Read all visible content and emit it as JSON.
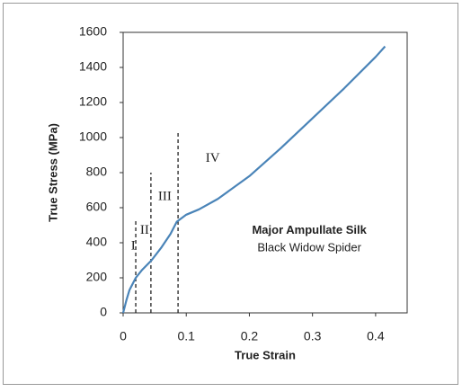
{
  "chart_data": {
    "type": "line",
    "xlabel": "True Strain",
    "ylabel": "True Stress (MPa)",
    "x": [
      0,
      0.005,
      0.01,
      0.02,
      0.03,
      0.045,
      0.06,
      0.075,
      0.085,
      0.1,
      0.12,
      0.15,
      0.2,
      0.25,
      0.3,
      0.35,
      0.4,
      0.415
    ],
    "series": [
      {
        "color": "#4a84b8",
        "values": [
          0,
          70,
          130,
          200,
          245,
          300,
          370,
          450,
          520,
          560,
          590,
          650,
          780,
          940,
          1110,
          1280,
          1460,
          1520
        ]
      }
    ],
    "xlim": [
      0,
      0.45
    ],
    "ylim": [
      0,
      1600
    ],
    "xticks": [
      0,
      0.1,
      0.2,
      0.3,
      0.4
    ],
    "yticks": [
      0,
      200,
      400,
      600,
      800,
      1000,
      1200,
      1400,
      1600
    ],
    "dividers": [
      {
        "x": 0.02,
        "top": 530
      },
      {
        "x": 0.044,
        "top": 800
      },
      {
        "x": 0.087,
        "top": 1040
      }
    ],
    "regions": [
      {
        "label": "I",
        "x": 0.016,
        "y": 380
      },
      {
        "label": "II",
        "x": 0.034,
        "y": 470
      },
      {
        "label": "III",
        "x": 0.066,
        "y": 660
      },
      {
        "label": "IV",
        "x": 0.142,
        "y": 880
      }
    ],
    "annotations": [
      {
        "text": "Major Ampullate Silk",
        "bold": true,
        "x": 0.295,
        "y": 470
      },
      {
        "text": "Black Widow Spider",
        "bold": false,
        "x": 0.295,
        "y": 370
      }
    ]
  }
}
